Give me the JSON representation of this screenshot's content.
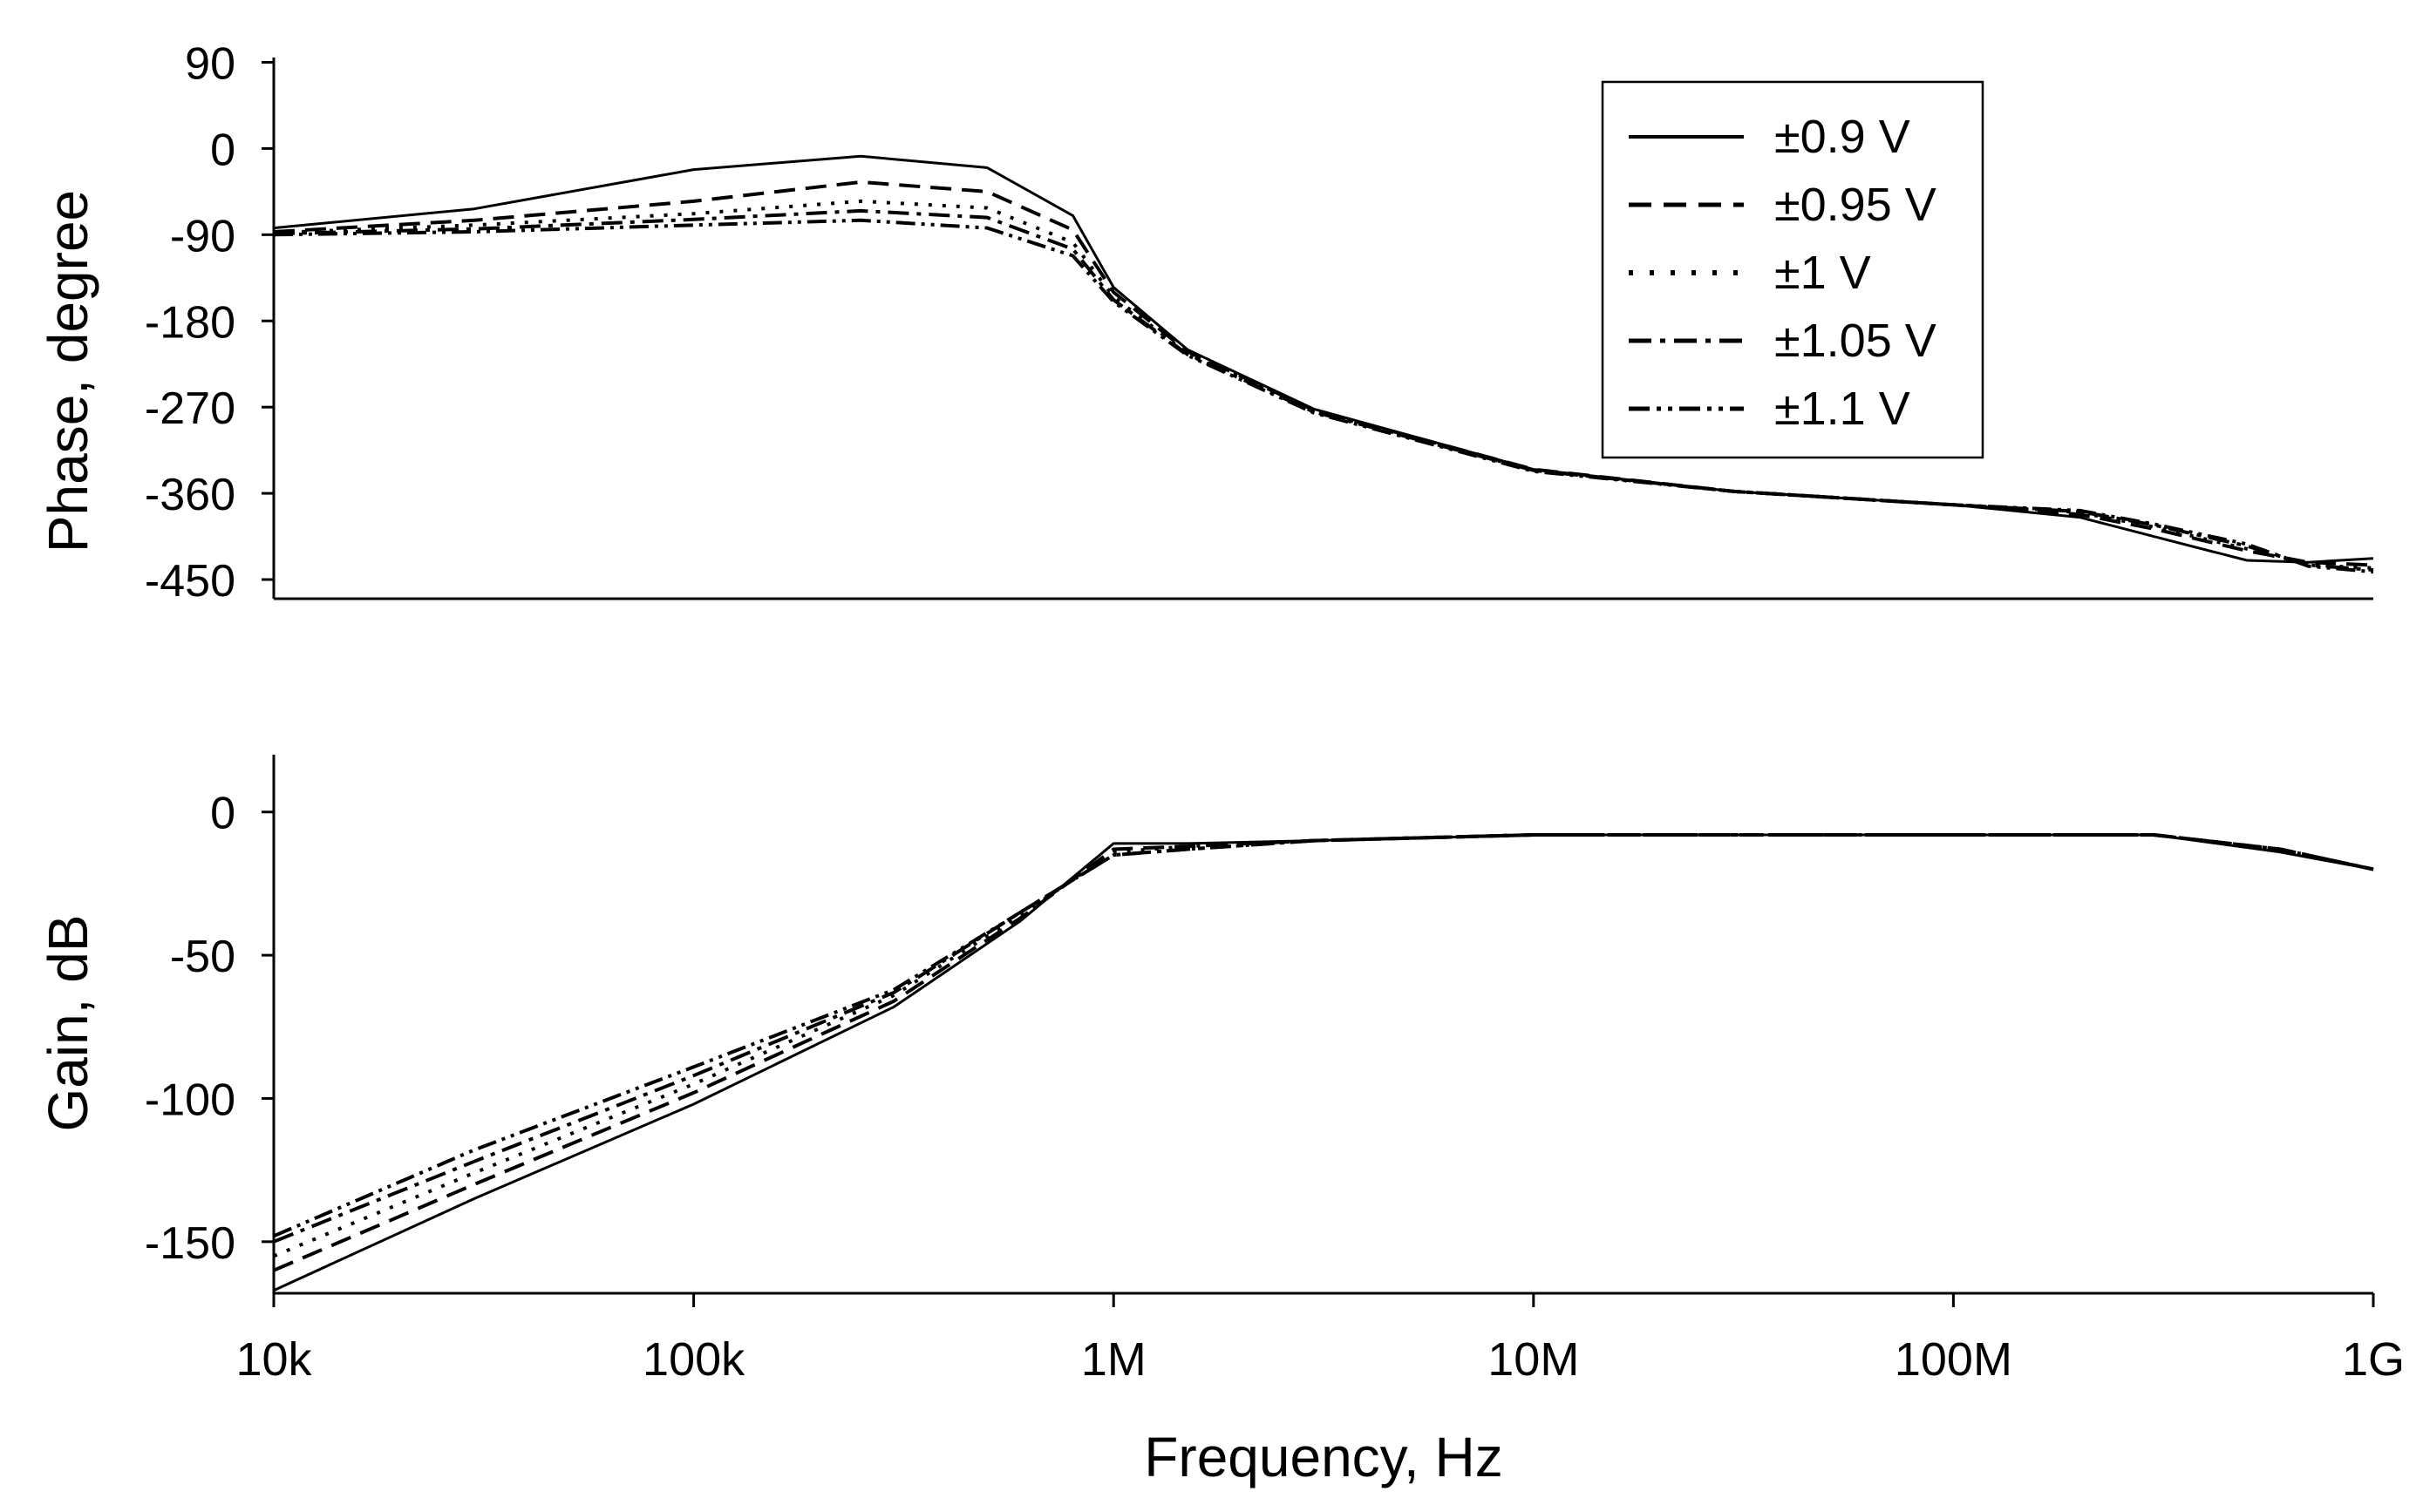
{
  "chart_data": [
    {
      "type": "line",
      "panel": "phase",
      "ylabel": "Phase, degree",
      "xscale": "log",
      "xlim": [
        10000,
        1000000000
      ],
      "ylim": [
        -470,
        95
      ],
      "yticks": [
        90,
        0,
        -90,
        -180,
        -270,
        -360,
        -450
      ],
      "ytick_labels": [
        "90",
        "0",
        "-90",
        "-180",
        "-270",
        "-360",
        "-450"
      ],
      "legend": {
        "position": "top-right",
        "entries": [
          "±0.9 V",
          "±0.95 V",
          "±1 V",
          "±1.05 V",
          "±1.1 V"
        ]
      },
      "series": [
        {
          "name": "±0.9 V",
          "style": "solid",
          "x": [
            10000,
            30000,
            100000,
            250000,
            500000,
            800000,
            1000000,
            1500000,
            3000000,
            10000000,
            30000000,
            100000000,
            200000000,
            300000000,
            500000000,
            700000000,
            1000000000
          ],
          "y": [
            -83,
            -63,
            -22,
            -8,
            -20,
            -70,
            -145,
            -210,
            -272,
            -335,
            -358,
            -372,
            -385,
            -405,
            -430,
            -432,
            -428
          ]
        },
        {
          "name": "±0.95 V",
          "style": "dashed",
          "x": [
            10000,
            30000,
            100000,
            250000,
            500000,
            800000,
            1000000,
            1500000,
            3000000,
            10000000,
            30000000,
            100000000,
            200000000,
            300000000,
            500000000,
            700000000,
            1000000000
          ],
          "y": [
            -87,
            -75,
            -55,
            -35,
            -45,
            -85,
            -150,
            -212,
            -273,
            -335,
            -358,
            -372,
            -382,
            -397,
            -420,
            -432,
            -435
          ]
        },
        {
          "name": "±1 V",
          "style": "dotted",
          "x": [
            10000,
            30000,
            100000,
            250000,
            500000,
            800000,
            1000000,
            1500000,
            3000000,
            10000000,
            30000000,
            100000000,
            200000000,
            300000000,
            500000000,
            700000000,
            1000000000
          ],
          "y": [
            -88,
            -80,
            -68,
            -55,
            -62,
            -98,
            -155,
            -214,
            -274,
            -336,
            -358,
            -372,
            -380,
            -395,
            -418,
            -435,
            -438
          ]
        },
        {
          "name": "±1.05 V",
          "style": "dashdot",
          "x": [
            10000,
            30000,
            100000,
            250000,
            500000,
            800000,
            1000000,
            1500000,
            3000000,
            10000000,
            30000000,
            100000000,
            200000000,
            300000000,
            500000000,
            700000000,
            1000000000
          ],
          "y": [
            -89,
            -84,
            -74,
            -65,
            -72,
            -105,
            -158,
            -215,
            -275,
            -336,
            -358,
            -372,
            -379,
            -393,
            -415,
            -435,
            -440
          ]
        },
        {
          "name": "±1.1 V",
          "style": "dashdotdot",
          "x": [
            10000,
            30000,
            100000,
            250000,
            500000,
            800000,
            1000000,
            1500000,
            3000000,
            10000000,
            30000000,
            100000000,
            200000000,
            300000000,
            500000000,
            700000000,
            1000000000
          ],
          "y": [
            -90,
            -87,
            -80,
            -75,
            -83,
            -112,
            -160,
            -216,
            -276,
            -337,
            -358,
            -372,
            -378,
            -392,
            -413,
            -436,
            -442
          ]
        }
      ]
    },
    {
      "type": "line",
      "panel": "gain",
      "ylabel": "Gain, dB",
      "xlabel": "Frequency, Hz",
      "xscale": "log",
      "xlim": [
        10000,
        1000000000
      ],
      "ylim": [
        -168,
        20
      ],
      "yticks": [
        0,
        -50,
        -100,
        -150
      ],
      "ytick_labels": [
        "0",
        "-50",
        "-100",
        "-150"
      ],
      "xticks": [
        10000,
        100000,
        1000000,
        10000000,
        100000000,
        1000000000
      ],
      "xtick_labels": [
        "10k",
        "100k",
        "1M",
        "10M",
        "100M",
        "1G"
      ],
      "series": [
        {
          "name": "±0.9 V",
          "style": "solid",
          "x": [
            10000,
            30000,
            100000,
            300000,
            600000,
            1000000,
            1500000,
            3000000,
            10000000,
            100000000,
            300000000,
            600000000,
            1000000000
          ],
          "y": [
            -167,
            -135,
            -102,
            -68,
            -38,
            -11,
            -11,
            -10,
            -8,
            -8,
            -8,
            -14,
            -20
          ]
        },
        {
          "name": "±0.95 V",
          "style": "dashed",
          "x": [
            10000,
            30000,
            100000,
            300000,
            600000,
            1000000,
            1500000,
            3000000,
            10000000,
            100000000,
            300000000,
            600000000,
            1000000000
          ],
          "y": [
            -160,
            -130,
            -98,
            -66,
            -37,
            -13,
            -12,
            -10,
            -8,
            -8,
            -8,
            -13,
            -20
          ]
        },
        {
          "name": "±1 V",
          "style": "dotted",
          "x": [
            10000,
            30000,
            100000,
            300000,
            600000,
            1000000,
            1500000,
            3000000,
            10000000,
            100000000,
            300000000,
            600000000,
            1000000000
          ],
          "y": [
            -155,
            -126,
            -95,
            -64,
            -36,
            -14,
            -12,
            -10,
            -8,
            -8,
            -8,
            -13,
            -20
          ]
        },
        {
          "name": "±1.05 V",
          "style": "dashdot",
          "x": [
            10000,
            30000,
            100000,
            300000,
            600000,
            1000000,
            1500000,
            3000000,
            10000000,
            100000000,
            300000000,
            600000000,
            1000000000
          ],
          "y": [
            -150,
            -122,
            -92,
            -63,
            -35,
            -15,
            -13,
            -10,
            -8,
            -8,
            -8,
            -13,
            -20
          ]
        },
        {
          "name": "±1.1 V",
          "style": "dashdotdot",
          "x": [
            10000,
            30000,
            100000,
            300000,
            600000,
            1000000,
            1500000,
            3000000,
            10000000,
            100000000,
            300000000,
            600000000,
            1000000000
          ],
          "y": [
            -148,
            -118,
            -89,
            -62,
            -35,
            -15,
            -13,
            -10,
            -8,
            -8,
            -8,
            -13,
            -20
          ]
        }
      ]
    }
  ]
}
